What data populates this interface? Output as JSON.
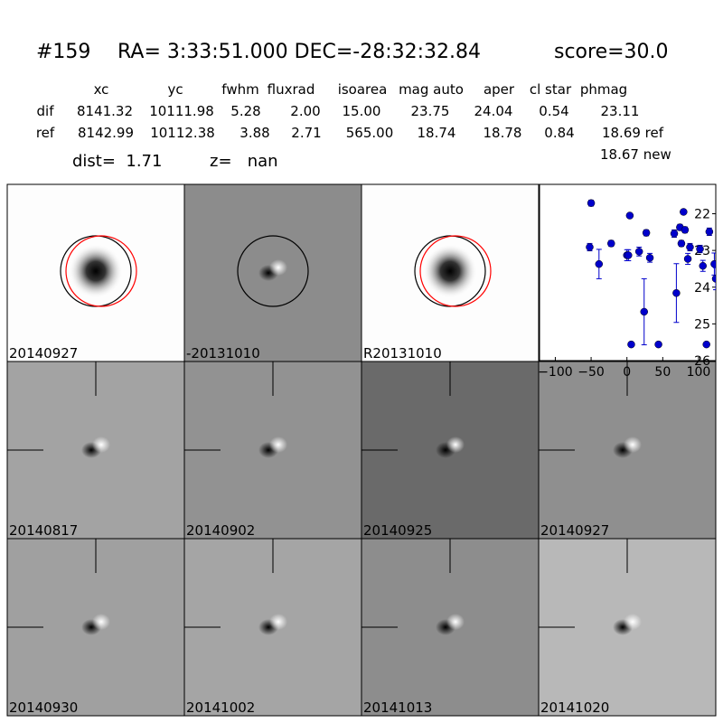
{
  "header": {
    "id": "#159",
    "coords": "RA= 3:33:51.000 DEC=-28:32:32.84",
    "score": "score=30.0"
  },
  "table": {
    "columns": [
      "xc",
      "yc",
      "fwhm",
      "fluxrad",
      "isoarea",
      "mag auto",
      "aper",
      "cl star",
      "phmag"
    ],
    "rows": [
      [
        "dif",
        "8141.32",
        "10111.98",
        "5.28",
        "2.00",
        "15.00",
        "23.75",
        "24.04",
        "0.54",
        "23.11"
      ],
      [
        "ref",
        "8142.99",
        "10112.38",
        "3.88",
        "2.71",
        "565.00",
        "18.74",
        "18.78",
        "0.84",
        "18.69 ref"
      ]
    ],
    "note": "18.67 new"
  },
  "summary": {
    "dist": "dist=  1.71",
    "z": "z=   nan"
  },
  "panels": [
    {
      "label": "20140927",
      "label_color": "#000000"
    },
    {
      "label": "-20131010",
      "label_color": "#000000"
    },
    {
      "label": "R20131010",
      "label_color": "#000000"
    },
    {
      "label": "20140817",
      "label_color": "#000000"
    },
    {
      "label": "20140902",
      "label_color": "#000000"
    },
    {
      "label": "20140925",
      "label_color": "#000000"
    },
    {
      "label": "20140927",
      "label_color": "#ff0000"
    },
    {
      "label": "20140930",
      "label_color": "#000000"
    },
    {
      "label": "20141002",
      "label_color": "#000000"
    },
    {
      "label": "20141013",
      "label_color": "#000000"
    },
    {
      "label": "20141020",
      "label_color": "#000000"
    }
  ],
  "light_curve": {
    "type": "scatter",
    "color": "#0000cc",
    "x": [
      -52,
      -50,
      -39,
      -22,
      0,
      2,
      4,
      6,
      17,
      24,
      27,
      32,
      44,
      66,
      69,
      74,
      76,
      79,
      81,
      85,
      88,
      102,
      106,
      111,
      115,
      122,
      124
    ],
    "values": [
      22.91,
      21.71,
      23.37,
      22.81,
      23.13,
      23.13,
      22.05,
      25.56,
      23.03,
      24.67,
      22.52,
      23.2,
      25.56,
      22.54,
      24.16,
      22.37,
      22.81,
      21.95,
      22.44,
      23.23,
      22.91,
      22.96,
      23.42,
      25.56,
      22.49,
      23.37,
      23.77
    ],
    "errors": [
      0.1,
      0.08,
      0.4,
      0.08,
      0.15,
      0.15,
      0.06,
      0.05,
      0.12,
      0.9,
      0.08,
      0.12,
      0.05,
      0.1,
      0.8,
      0.08,
      0.08,
      0.06,
      0.08,
      0.15,
      0.1,
      0.1,
      0.15,
      0.05,
      0.1,
      0.3,
      0.3
    ],
    "xlim": [
      -122,
      124
    ],
    "ylim": [
      21.2,
      26
    ],
    "y_inverted": true,
    "xticks": [
      {
        "value": -100,
        "label": "−100"
      },
      {
        "value": -50,
        "label": "−50"
      },
      0,
      50,
      100
    ],
    "yticks": [
      22,
      23,
      24,
      25,
      26
    ]
  }
}
